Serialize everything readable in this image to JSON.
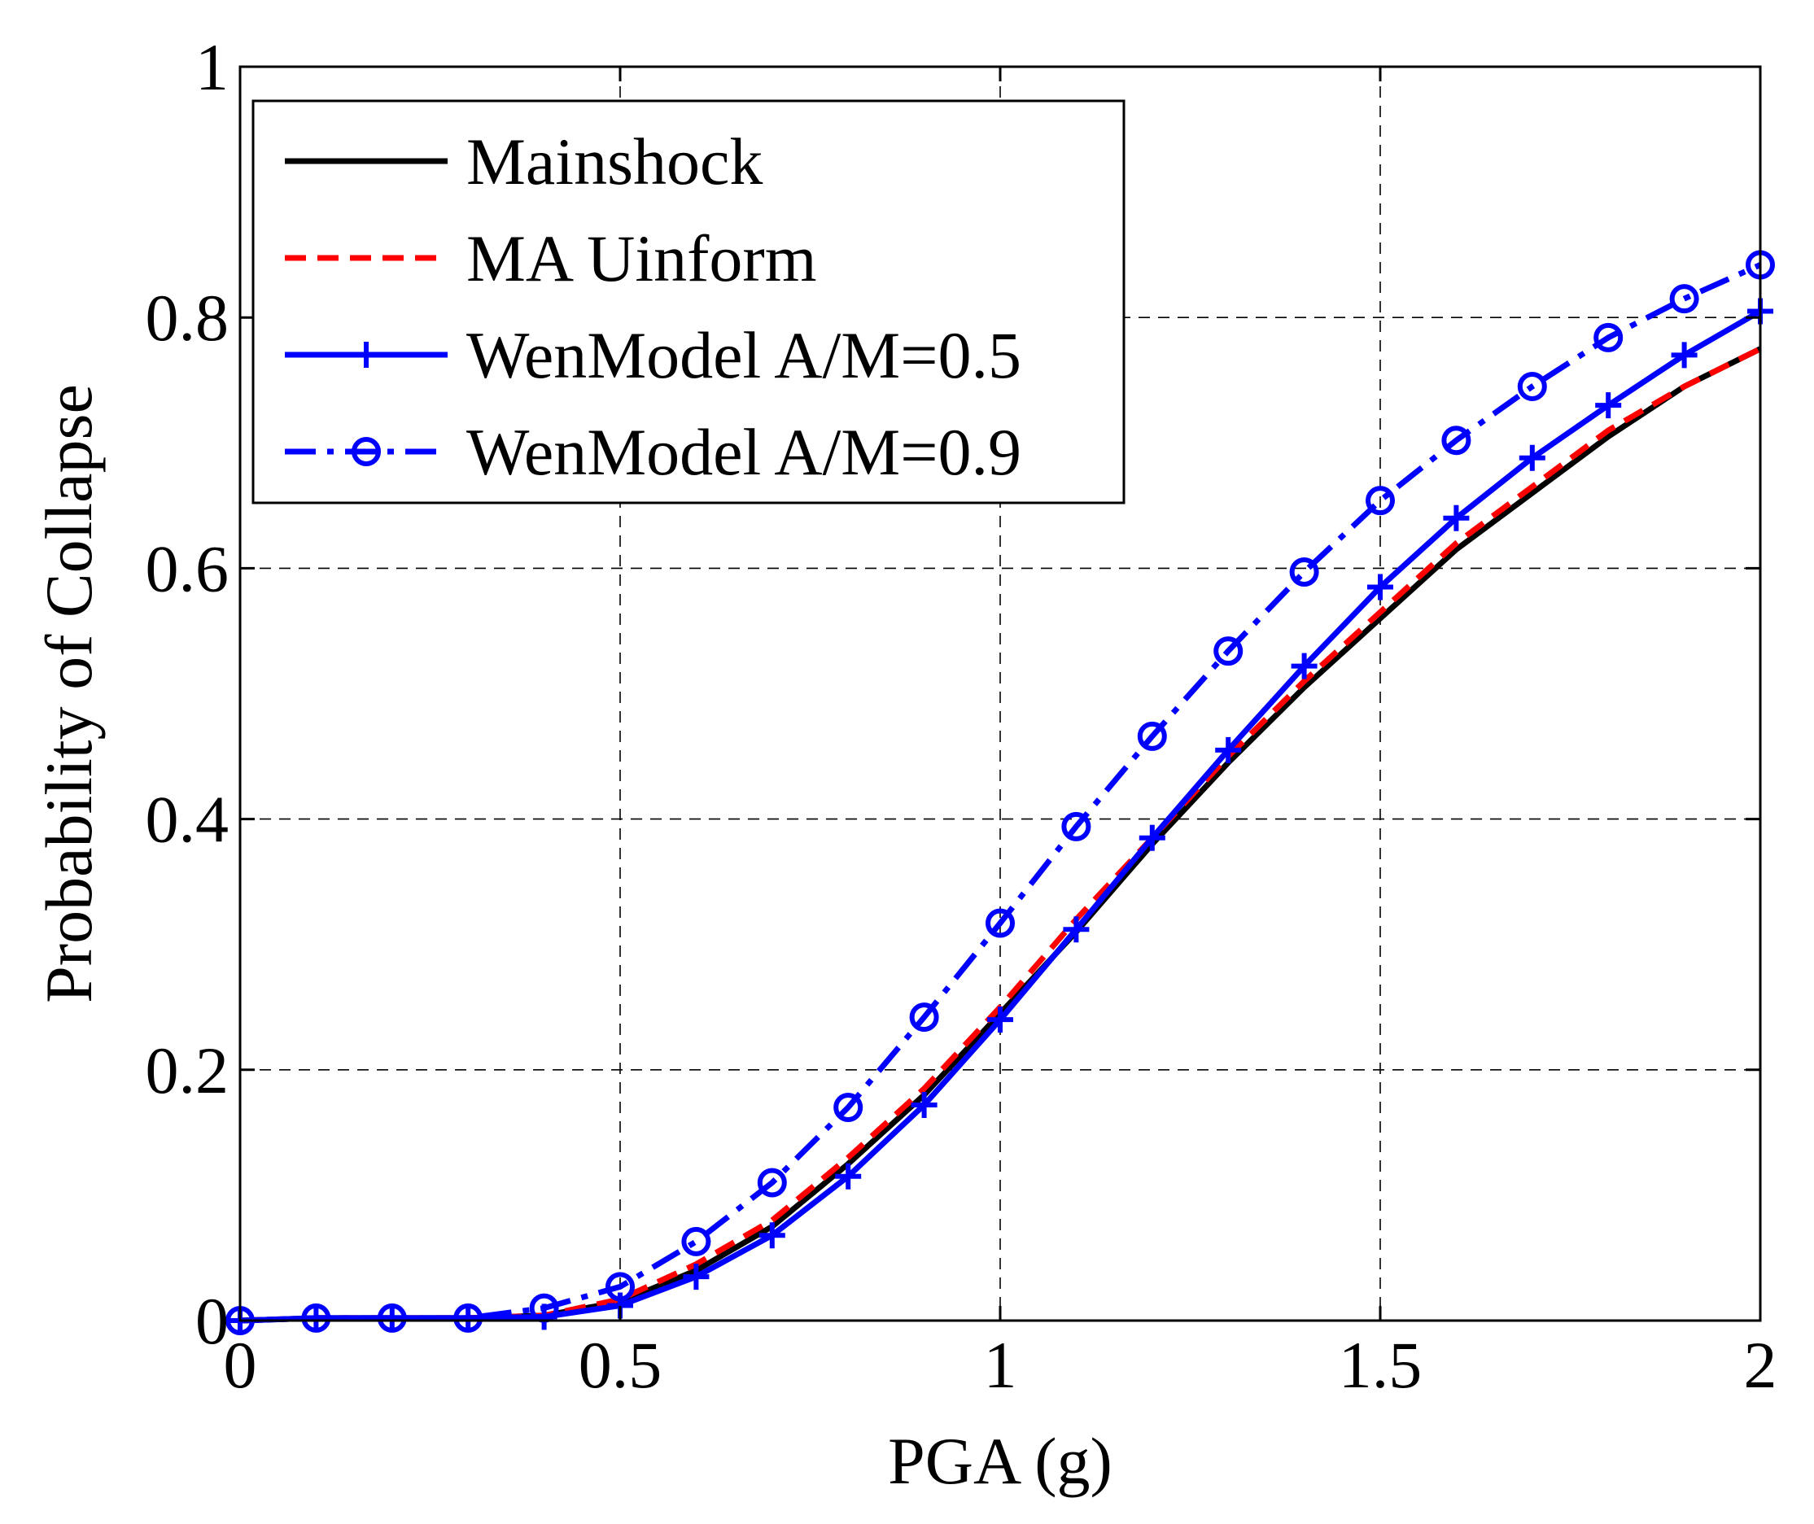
{
  "chart_data": {
    "type": "line",
    "title": "",
    "xlabel": "PGA (g)",
    "ylabel": "Probability of Collapse",
    "xlim": [
      0,
      2
    ],
    "ylim": [
      0,
      1
    ],
    "xticks": [
      0,
      0.5,
      1,
      1.5,
      2
    ],
    "xtick_labels": [
      "0",
      "0.5",
      "1",
      "1.5",
      "2"
    ],
    "yticks": [
      0,
      0.2,
      0.4,
      0.6,
      0.8,
      1
    ],
    "ytick_labels": [
      "0",
      "0.2",
      "0.4",
      "0.6",
      "0.8",
      "1"
    ],
    "grid": true,
    "legend_position": "top-left",
    "x": [
      0,
      0.1,
      0.2,
      0.3,
      0.4,
      0.5,
      0.6,
      0.7,
      0.8,
      0.9,
      1.0,
      1.1,
      1.2,
      1.3,
      1.4,
      1.5,
      1.6,
      1.7,
      1.8,
      1.9,
      2.0
    ],
    "series": [
      {
        "name": "Mainshock",
        "color": "#000000",
        "line_style": "solid",
        "marker": "none",
        "values": [
          0.0,
          0.002,
          0.002,
          0.002,
          0.004,
          0.015,
          0.04,
          0.075,
          0.125,
          0.18,
          0.245,
          0.31,
          0.38,
          0.445,
          0.505,
          0.56,
          0.615,
          0.66,
          0.705,
          0.745,
          0.775
        ]
      },
      {
        "name": "MA Uinform",
        "color": "#ff0000",
        "line_style": "dashed",
        "marker": "none",
        "values": [
          0.0,
          0.002,
          0.002,
          0.002,
          0.004,
          0.017,
          0.045,
          0.08,
          0.13,
          0.185,
          0.25,
          0.32,
          0.385,
          0.45,
          0.51,
          0.565,
          0.62,
          0.665,
          0.71,
          0.745,
          0.775
        ]
      },
      {
        "name": "WenModel A/M=0.5",
        "color": "#0000ff",
        "line_style": "solid",
        "marker": "plus",
        "values": [
          0.0,
          0.002,
          0.002,
          0.002,
          0.003,
          0.012,
          0.035,
          0.068,
          0.115,
          0.172,
          0.24,
          0.312,
          0.385,
          0.455,
          0.522,
          0.585,
          0.64,
          0.688,
          0.73,
          0.77,
          0.805
        ]
      },
      {
        "name": "WenModel A/M=0.9",
        "color": "#0000ff",
        "line_style": "dashdot",
        "marker": "circle",
        "values": [
          0.0,
          0.002,
          0.002,
          0.002,
          0.01,
          0.027,
          0.063,
          0.11,
          0.17,
          0.242,
          0.317,
          0.394,
          0.466,
          0.534,
          0.597,
          0.654,
          0.702,
          0.745,
          0.784,
          0.815,
          0.842
        ]
      }
    ]
  }
}
